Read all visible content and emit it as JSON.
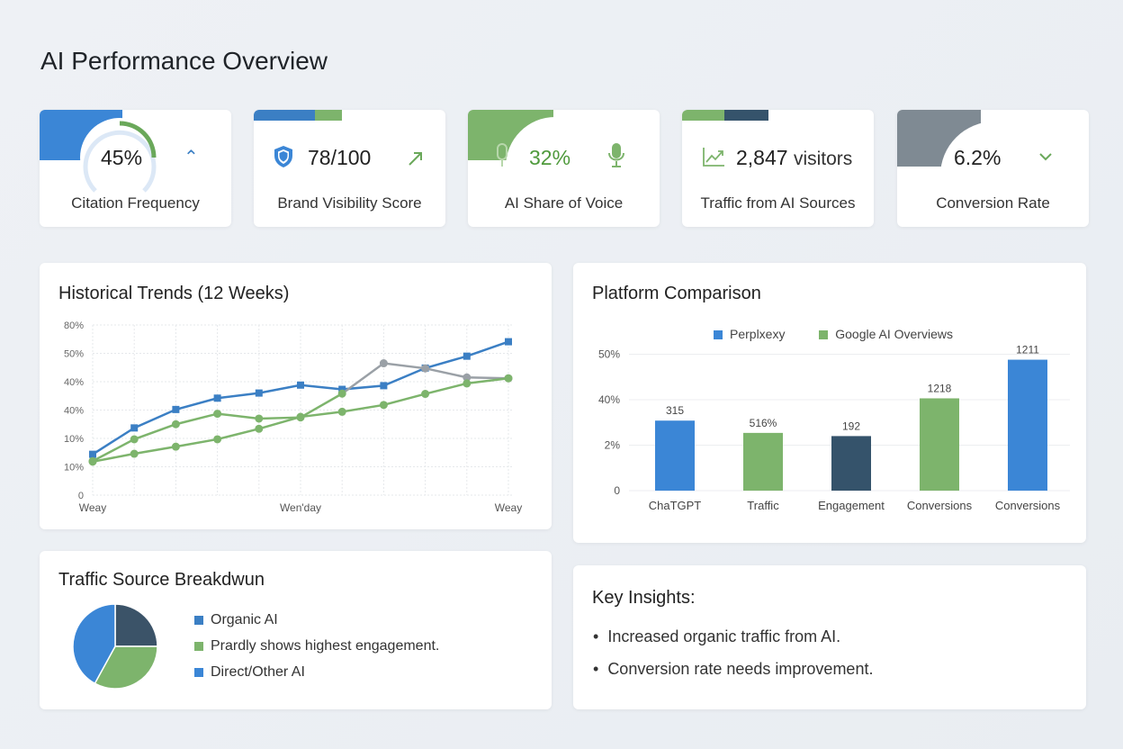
{
  "page_title": "AI Performance Overview",
  "kpis": [
    {
      "value": "45%",
      "label": "Citation Frequency",
      "icon": "chevron-up-icon",
      "accent": "#3b86d6",
      "gauge_fraction": 0.45
    },
    {
      "value": "78/100",
      "label": "Brand Visibility Score",
      "icon": "shield-icon",
      "trend_icon": "arrow-up-right-icon",
      "accent": "#3b7fc4"
    },
    {
      "value": "32%",
      "label": "AI Share of Voice",
      "icon": "microphone-icon",
      "accent": "#7db46c"
    },
    {
      "value": "2,847",
      "unit": "visitors",
      "label": "Traffic from AI Sources",
      "icon": "line-chart-icon",
      "accent": "#7db46c"
    },
    {
      "value": "6.2%",
      "label": "Conversion Rate",
      "icon": "chevron-down-icon",
      "accent": "#7f8a93"
    }
  ],
  "historical": {
    "title": "Historical Trends (12 Weeks)",
    "chart_data": {
      "type": "line",
      "y_tick_labels": [
        "0",
        "10%",
        "10%",
        "40%",
        "40%",
        "50%",
        "80%"
      ],
      "x_tick_labels": [
        "Weay",
        "Wen'day",
        "Weay"
      ],
      "grid": true,
      "series": [
        {
          "color": "#3b7fc4",
          "marker": "square",
          "values": [
            1.44,
            2.37,
            3.02,
            3.42,
            3.6,
            3.88,
            3.73,
            3.86,
            4.48,
            4.9,
            5.41
          ]
        },
        {
          "color": "#7db46c",
          "tail_color": "#9aa0a6",
          "tail_from": 7,
          "marker": "circle",
          "values": [
            1.2,
            1.97,
            2.5,
            2.87,
            2.7,
            2.74,
            3.58,
            4.65,
            4.47,
            4.15,
            4.12
          ]
        },
        {
          "color": "#7db46c",
          "marker": "circle",
          "values": [
            1.18,
            1.46,
            1.71,
            1.97,
            2.34,
            2.76,
            2.94,
            3.18,
            3.57,
            3.94,
            4.12
          ]
        }
      ]
    }
  },
  "platform": {
    "title": "Platform Comparison",
    "chart_data": {
      "type": "bar",
      "legend": [
        {
          "name": "Perplxexy",
          "color": "#3b86d6"
        },
        {
          "name": "Google AI Overviews",
          "color": "#7db46c"
        }
      ],
      "legend_position": "top",
      "y_tick_labels": [
        "0",
        "2%",
        "40%",
        "50%"
      ],
      "categories": [
        "ChaTGPT",
        "Traffic",
        "Engagement",
        "Conversions",
        "Conversions"
      ],
      "values": [
        1.54,
        1.27,
        1.2,
        2.03,
        2.88
      ],
      "data_labels": [
        "315",
        "516%",
        "192",
        "1218",
        "1211"
      ],
      "colors": [
        "#3b86d6",
        "#7db46c",
        "#35536b",
        "#7db46c",
        "#3b86d6"
      ]
    }
  },
  "traffic": {
    "title": "Traffic Source Breakdwun",
    "chart_data": {
      "type": "pie",
      "slices": [
        {
          "value": 25,
          "color": "#3b5368"
        },
        {
          "value": 33,
          "color": "#7db46c"
        },
        {
          "value": 42,
          "color": "#3b86d6"
        }
      ],
      "legend": [
        {
          "name": "Organic AI",
          "color": "#3b7fc4"
        },
        {
          "name": "Prardly shows highest engagement.",
          "color": "#7db46c"
        },
        {
          "name": "Direct/Other AI",
          "color": "#3b86d6"
        }
      ]
    }
  },
  "insights": {
    "title": "Key Insights:",
    "items": [
      "Increased organic traffic from AI.",
      "Conversion rate needs improvement."
    ]
  }
}
